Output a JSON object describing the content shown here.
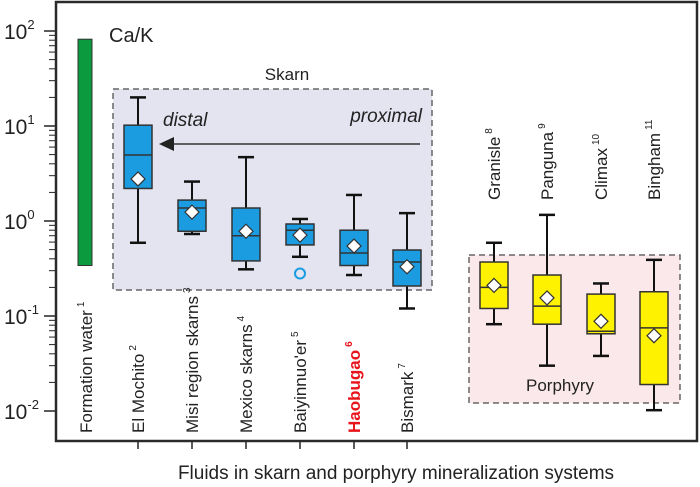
{
  "chart_data": {
    "type": "box",
    "title": "Ca/K",
    "xlabel": "Fluids in skarn and porphyry mineralization systems",
    "ylabel": "",
    "yscale": "log",
    "ylim": [
      0.01,
      100
    ],
    "yticks": [
      {
        "base": "10",
        "exp": "2",
        "value": 100
      },
      {
        "base": "10",
        "exp": "1",
        "value": 10
      },
      {
        "base": "10",
        "exp": "0",
        "value": 1
      },
      {
        "base": "10",
        "exp": "-1",
        "value": 0.1
      },
      {
        "base": "10",
        "exp": "-2",
        "value": 0.01
      }
    ],
    "range_bar": {
      "label": "Formation water",
      "ref": "1",
      "min": 0.34,
      "max": 82,
      "color": "#0b9a3e"
    },
    "groups": [
      {
        "label": "Skarn",
        "fill": "#e4e3f0",
        "annotation_left": "distal",
        "annotation_right": "proximal"
      },
      {
        "label": "Porphyry",
        "fill": "#fbe8ea"
      }
    ],
    "boxes": [
      {
        "label": "El Mochito",
        "ref": "2",
        "group": 0,
        "whisker_high": 20,
        "q3": 10.2,
        "median": 4.95,
        "mean": 2.77,
        "q1": 2.2,
        "whisker_low": 0.59,
        "color": "#1b9ce0"
      },
      {
        "label": "Misi region skarns",
        "ref": "3",
        "group": 0,
        "whisker_high": 2.6,
        "q3": 1.66,
        "median": 1.37,
        "mean": 1.24,
        "q1": 0.78,
        "whisker_low": 0.73,
        "color": "#1b9ce0"
      },
      {
        "label": "Mexico skarns",
        "ref": "4",
        "group": 0,
        "whisker_high": 4.7,
        "q3": 1.37,
        "median": 0.7,
        "mean": 0.78,
        "q1": 0.38,
        "whisker_low": 0.31,
        "color": "#1b9ce0"
      },
      {
        "label": "Baiyinnuo'er",
        "ref": "5",
        "group": 0,
        "whisker_high": 1.05,
        "q3": 0.93,
        "median": 0.8,
        "mean": 0.71,
        "q1": 0.56,
        "whisker_low": 0.42,
        "outliers": [
          0.28
        ],
        "color": "#1b9ce0"
      },
      {
        "label": "Haobugao",
        "ref": "6",
        "group": 0,
        "whisker_high": 1.88,
        "q3": 0.8,
        "median": 0.46,
        "mean": 0.545,
        "q1": 0.34,
        "whisker_low": 0.27,
        "color": "#1b9ce0",
        "label_color": "#e8141b"
      },
      {
        "label": "Bismark",
        "ref": "7",
        "group": 0,
        "whisker_high": 1.21,
        "q3": 0.495,
        "median": 0.37,
        "mean": 0.33,
        "q1": 0.207,
        "whisker_low": 0.12,
        "color": "#1b9ce0"
      },
      {
        "label": "Granisle",
        "ref": "8",
        "group": 1,
        "whisker_high": 0.59,
        "q3": 0.37,
        "median": 0.2,
        "mean": 0.21,
        "q1": 0.12,
        "whisker_low": 0.082,
        "color": "#fff200"
      },
      {
        "label": "Panguna",
        "ref": "9",
        "group": 1,
        "whisker_high": 1.16,
        "q3": 0.27,
        "median": 0.127,
        "mean": 0.155,
        "q1": 0.082,
        "whisker_low": 0.03,
        "color": "#fff200"
      },
      {
        "label": "Climax",
        "ref": "10",
        "group": 1,
        "whisker_high": 0.22,
        "q3": 0.17,
        "median": 0.069,
        "mean": 0.088,
        "q1": 0.065,
        "whisker_low": 0.038,
        "color": "#fff200"
      },
      {
        "label": "Bingham",
        "ref": "11",
        "group": 1,
        "whisker_high": 0.39,
        "q3": 0.18,
        "median": 0.075,
        "mean": 0.062,
        "q1": 0.019,
        "whisker_low": 0.0102,
        "color": "#fff200"
      }
    ],
    "grid": false
  }
}
